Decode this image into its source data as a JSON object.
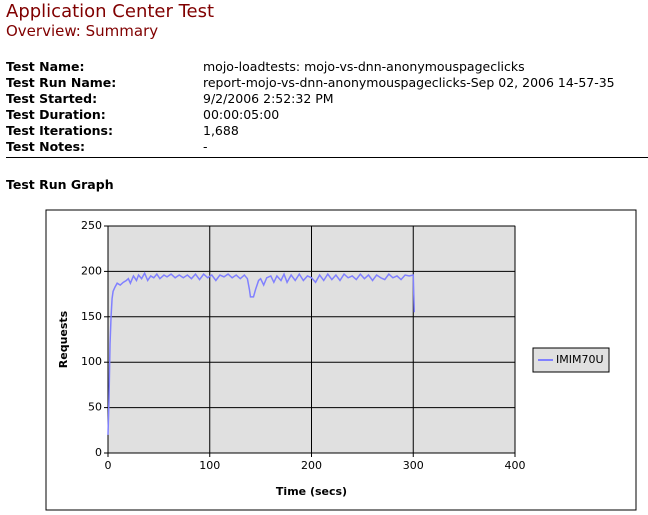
{
  "header": {
    "title": "Application Center Test",
    "subtitle": "Overview: Summary"
  },
  "fields": [
    {
      "label": "Test Name:",
      "value": "mojo-loadtests: mojo-vs-dnn-anonymouspageclicks"
    },
    {
      "label": "Test Run Name:",
      "value": "report-mojo-vs-dnn-anonymouspageclicks-Sep 02, 2006 14-57-35"
    },
    {
      "label": "Test Started:",
      "value": "9/2/2006 2:52:32 PM"
    },
    {
      "label": "Test Duration:",
      "value": "00:00:05:00"
    },
    {
      "label": "Test Iterations:",
      "value": "1,688"
    },
    {
      "label": "Test Notes:",
      "value": "-"
    }
  ],
  "section_title": "Test Run Graph",
  "chart_data": {
    "type": "line",
    "x_label": "Time (secs)",
    "y_label": "Requests",
    "x": [
      0,
      1,
      2,
      3,
      4,
      5,
      7,
      9,
      12,
      15,
      18,
      20,
      22,
      25,
      28,
      30,
      33,
      36,
      39,
      42,
      45,
      48,
      51,
      55,
      58,
      62,
      66,
      70,
      74,
      78,
      82,
      86,
      90,
      94,
      98,
      102,
      106,
      110,
      114,
      118,
      122,
      126,
      130,
      134,
      137,
      139,
      140,
      143,
      145,
      148,
      150,
      153,
      156,
      160,
      163,
      166,
      170,
      173,
      176,
      180,
      184,
      188,
      192,
      196,
      200,
      204,
      208,
      212,
      216,
      220,
      224,
      228,
      232,
      236,
      240,
      244,
      248,
      252,
      256,
      260,
      264,
      268,
      272,
      276,
      280,
      284,
      288,
      292,
      296,
      300,
      300.5,
      301
    ],
    "series": [
      {
        "name": "IMIM70U",
        "color": "#8080ff",
        "values": [
          20,
          60,
          120,
          150,
          170,
          178,
          183,
          187,
          185,
          188,
          190,
          192,
          187,
          195,
          190,
          196,
          192,
          198,
          190,
          195,
          193,
          197,
          192,
          196,
          194,
          197,
          193,
          196,
          193,
          196,
          192,
          197,
          191,
          197,
          193,
          196,
          190,
          196,
          194,
          197,
          193,
          196,
          192,
          196,
          192,
          180,
          172,
          172,
          180,
          190,
          192,
          185,
          193,
          195,
          188,
          195,
          190,
          197,
          188,
          196,
          190,
          197,
          190,
          195,
          193,
          188,
          196,
          190,
          197,
          191,
          196,
          190,
          197,
          193,
          195,
          191,
          197,
          192,
          196,
          190,
          196,
          193,
          191,
          197,
          193,
          195,
          191,
          196,
          195,
          196,
          175,
          155
        ]
      }
    ],
    "xlim": [
      0,
      400
    ],
    "xticks": [
      0,
      100,
      200,
      300,
      400
    ],
    "ylim": [
      0,
      250
    ],
    "yticks": [
      0,
      50,
      100,
      150,
      200,
      250
    ],
    "grid": true,
    "legend": "right",
    "plot_background": "#e0e0e0"
  }
}
